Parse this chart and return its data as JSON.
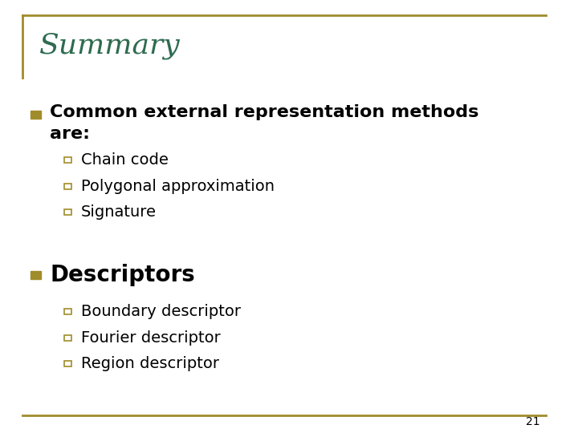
{
  "title": "Summary",
  "title_color": "#2E6B4F",
  "background_color": "#FFFFFF",
  "border_color": "#A08C2A",
  "slide_number": "21",
  "bullet_marker_color": "#A08C2A",
  "sub_marker_color": "#A08C2A",
  "bullet1_line1": "Common external representation methods",
  "bullet1_line2": "are:",
  "bullet1_sub": [
    "Chain code",
    "Polygonal approximation",
    "Signature"
  ],
  "bullet2_text": "Descriptors",
  "bullet2_sub": [
    "Boundary descriptor",
    "Fourier descriptor",
    "Region descriptor"
  ],
  "title_fontsize": 26,
  "main_bullet_fontsize": 16,
  "sub_bullet_fontsize": 14
}
